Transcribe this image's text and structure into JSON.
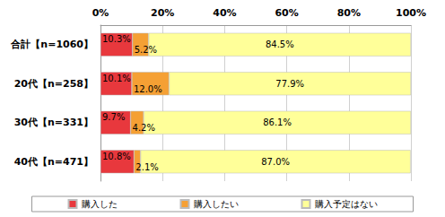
{
  "chart_data": {
    "type": "bar",
    "orientation": "horizontal",
    "stacked": true,
    "categories": [
      "合計【n=1060】",
      "20代【n=258】",
      "30代【n=331】",
      "40代【n=471】"
    ],
    "series": [
      {
        "name": "購入した",
        "color": "#e8383d",
        "values": [
          10.3,
          10.1,
          9.7,
          10.8
        ],
        "value_labels": [
          "10.3%",
          "10.1%",
          "9.7%",
          "10.8%"
        ]
      },
      {
        "name": "購入したい",
        "color": "#f5a034",
        "values": [
          5.2,
          12.0,
          4.2,
          2.1
        ],
        "value_labels": [
          "5.2%",
          "12.0%",
          "4.2%",
          "2.1%"
        ]
      },
      {
        "name": "購入予定はない",
        "color": "#ffff99",
        "values": [
          84.5,
          77.9,
          86.1,
          87.0
        ],
        "value_labels": [
          "84.5%",
          "77.9%",
          "86.1%",
          "87.0%"
        ]
      }
    ],
    "xlim": [
      0,
      100
    ],
    "xticks": [
      {
        "value": 0,
        "label": "0%"
      },
      {
        "value": 20,
        "label": "20%"
      },
      {
        "value": 40,
        "label": "40%"
      },
      {
        "value": 60,
        "label": "60%"
      },
      {
        "value": 80,
        "label": "80%"
      },
      {
        "value": 100,
        "label": "100%"
      }
    ],
    "grid": true,
    "data_labels": true,
    "legend": "bottom"
  }
}
